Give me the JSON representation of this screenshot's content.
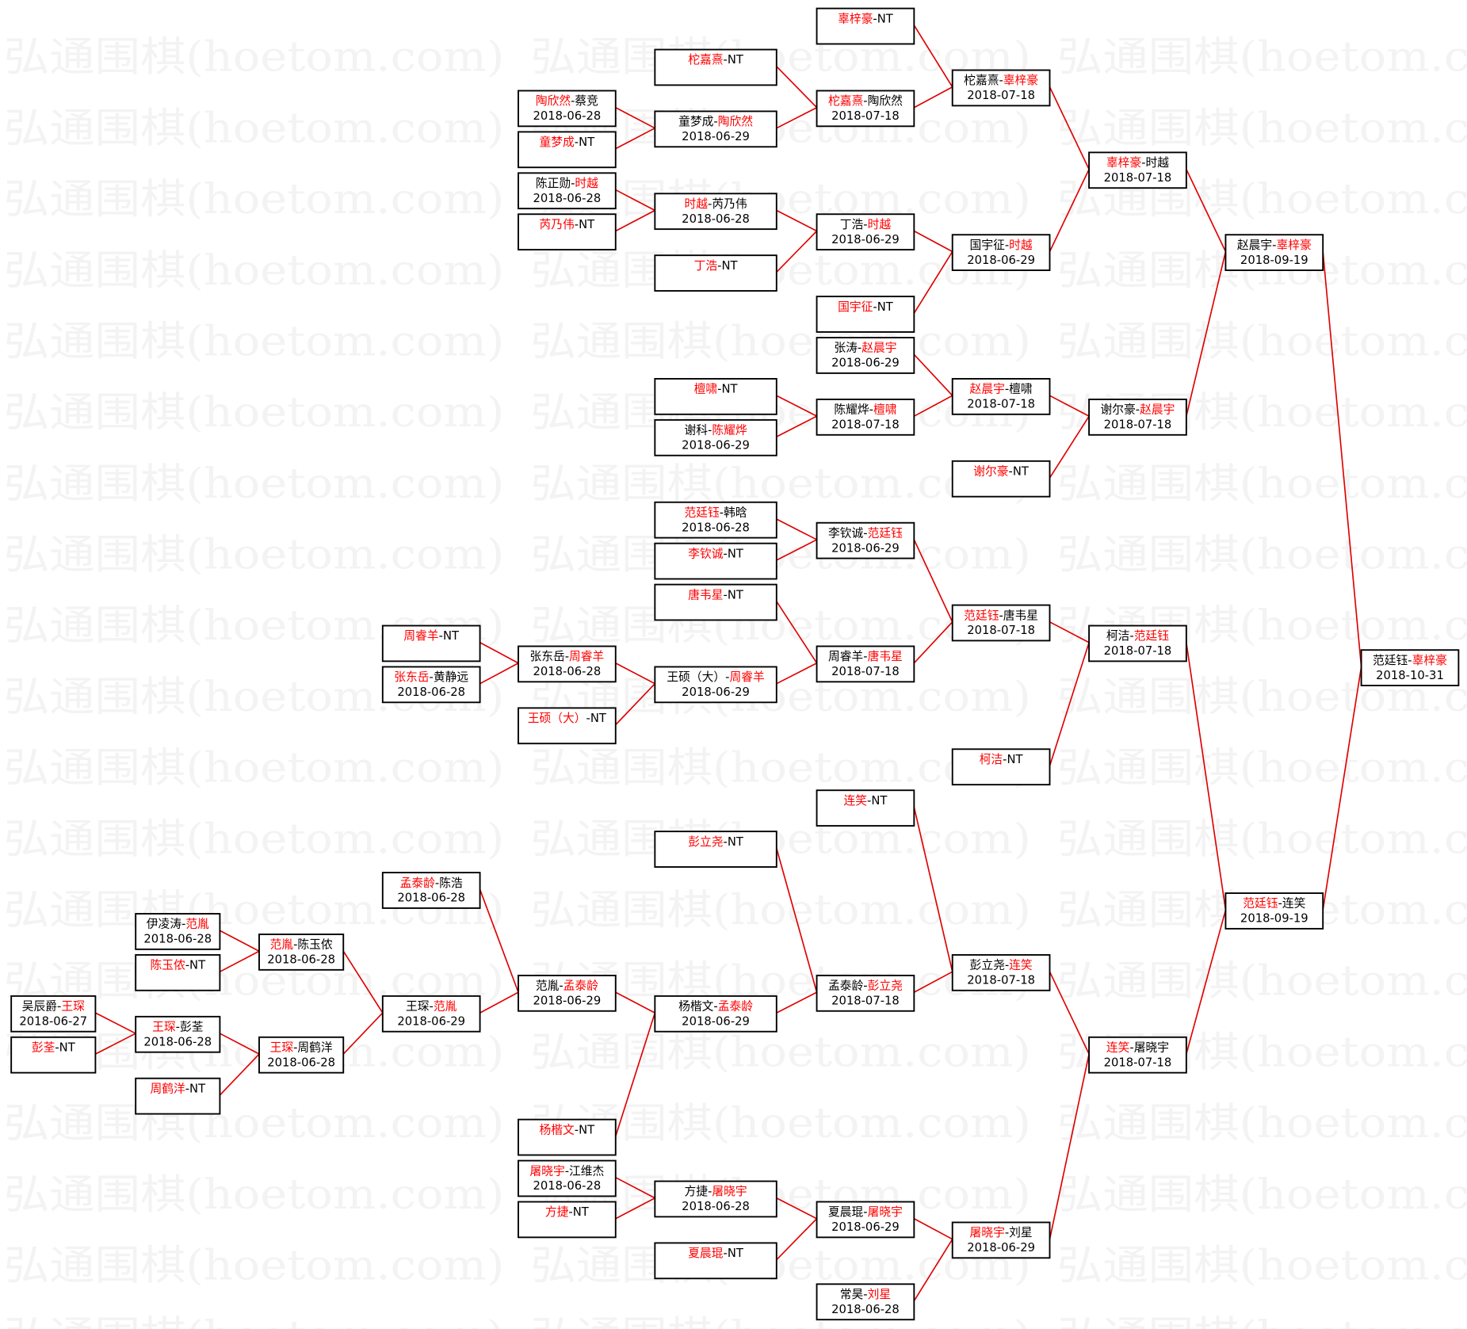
{
  "watermark": "弘通围棋(hoetom.com)",
  "colors": {
    "winner": "#ff0000",
    "line": "#e00000",
    "box_border": "#000000",
    "text": "#000000",
    "watermark": "#f3f3f3"
  },
  "bye_label": "NT",
  "matches": [
    {
      "id": 1,
      "p1": "辜梓豪",
      "p2": "NT",
      "winner": 1,
      "date": ""
    },
    {
      "id": 2,
      "p1": "柁嘉熹",
      "p2": "NT",
      "winner": 1,
      "date": ""
    },
    {
      "id": 3,
      "p1": "陶欣然",
      "p2": "蔡竞",
      "winner": 1,
      "date": "2018-06-28"
    },
    {
      "id": 4,
      "p1": "童梦成",
      "p2": "NT",
      "winner": 1,
      "date": ""
    },
    {
      "id": 5,
      "p1": "童梦成",
      "p2": "陶欣然",
      "winner": 2,
      "date": "2018-06-29",
      "from": [
        3,
        4
      ]
    },
    {
      "id": 6,
      "p1": "柁嘉熹",
      "p2": "陶欣然",
      "winner": 1,
      "date": "2018-07-18",
      "from": [
        2,
        5
      ]
    },
    {
      "id": 7,
      "p1": "柁嘉熹",
      "p2": "辜梓豪",
      "winner": 2,
      "date": "2018-07-18",
      "from": [
        1,
        6
      ]
    },
    {
      "id": 8,
      "p1": "陈正勋",
      "p2": "时越",
      "winner": 2,
      "date": "2018-06-28"
    },
    {
      "id": 9,
      "p1": "芮乃伟",
      "p2": "NT",
      "winner": 1,
      "date": ""
    },
    {
      "id": 10,
      "p1": "时越",
      "p2": "芮乃伟",
      "winner": 1,
      "date": "2018-06-28",
      "from": [
        8,
        9
      ]
    },
    {
      "id": 11,
      "p1": "丁浩",
      "p2": "NT",
      "winner": 1,
      "date": ""
    },
    {
      "id": 12,
      "p1": "丁浩",
      "p2": "时越",
      "winner": 2,
      "date": "2018-06-29",
      "from": [
        10,
        11
      ]
    },
    {
      "id": 13,
      "p1": "国宇征",
      "p2": "NT",
      "winner": 1,
      "date": ""
    },
    {
      "id": 14,
      "p1": "国宇征",
      "p2": "时越",
      "winner": 2,
      "date": "2018-06-29",
      "from": [
        12,
        13
      ]
    },
    {
      "id": 15,
      "p1": "辜梓豪",
      "p2": "时越",
      "winner": 1,
      "date": "2018-07-18",
      "from": [
        7,
        14
      ]
    },
    {
      "id": 16,
      "p1": "张涛",
      "p2": "赵晨宇",
      "winner": 2,
      "date": "2018-06-29"
    },
    {
      "id": 17,
      "p1": "檀啸",
      "p2": "NT",
      "winner": 1,
      "date": ""
    },
    {
      "id": 18,
      "p1": "谢科",
      "p2": "陈耀烨",
      "winner": 2,
      "date": "2018-06-29"
    },
    {
      "id": 19,
      "p1": "陈耀烨",
      "p2": "檀啸",
      "winner": 2,
      "date": "2018-07-18",
      "from": [
        17,
        18
      ]
    },
    {
      "id": 20,
      "p1": "赵晨宇",
      "p2": "檀啸",
      "winner": 1,
      "date": "2018-07-18",
      "from": [
        16,
        19
      ]
    },
    {
      "id": 21,
      "p1": "谢尔豪",
      "p2": "NT",
      "winner": 1,
      "date": ""
    },
    {
      "id": 22,
      "p1": "谢尔豪",
      "p2": "赵晨宇",
      "winner": 2,
      "date": "2018-07-18",
      "from": [
        20,
        21
      ]
    },
    {
      "id": 23,
      "p1": "赵晨宇",
      "p2": "辜梓豪",
      "winner": 2,
      "date": "2018-09-19",
      "from": [
        15,
        22
      ]
    },
    {
      "id": 24,
      "p1": "范廷钰",
      "p2": "韩晗",
      "winner": 1,
      "date": "2018-06-28"
    },
    {
      "id": 25,
      "p1": "李钦诚",
      "p2": "NT",
      "winner": 1,
      "date": ""
    },
    {
      "id": 26,
      "p1": "李钦诚",
      "p2": "范廷钰",
      "winner": 2,
      "date": "2018-06-29",
      "from": [
        24,
        25
      ]
    },
    {
      "id": 27,
      "p1": "唐韦星",
      "p2": "NT",
      "winner": 1,
      "date": ""
    },
    {
      "id": 28,
      "p1": "周睿羊",
      "p2": "NT",
      "winner": 1,
      "date": ""
    },
    {
      "id": 29,
      "p1": "张东岳",
      "p2": "黄静远",
      "winner": 1,
      "date": "2018-06-28"
    },
    {
      "id": 30,
      "p1": "张东岳",
      "p2": "周睿羊",
      "winner": 2,
      "date": "2018-06-28",
      "from": [
        28,
        29
      ]
    },
    {
      "id": 31,
      "p1": "王硕（大）",
      "p2": "NT",
      "winner": 1,
      "date": ""
    },
    {
      "id": 32,
      "p1": "王硕（大）",
      "p2": "周睿羊",
      "winner": 2,
      "date": "2018-06-29",
      "from": [
        30,
        31
      ]
    },
    {
      "id": 33,
      "p1": "周睿羊",
      "p2": "唐韦星",
      "winner": 2,
      "date": "2018-07-18",
      "from": [
        27,
        32
      ]
    },
    {
      "id": 34,
      "p1": "范廷钰",
      "p2": "唐韦星",
      "winner": 1,
      "date": "2018-07-18",
      "from": [
        26,
        33
      ]
    },
    {
      "id": 35,
      "p1": "柯洁",
      "p2": "NT",
      "winner": 1,
      "date": ""
    },
    {
      "id": 36,
      "p1": "柯洁",
      "p2": "范廷钰",
      "winner": 2,
      "date": "2018-07-18",
      "from": [
        34,
        35
      ]
    },
    {
      "id": 37,
      "p1": "连笑",
      "p2": "NT",
      "winner": 1,
      "date": ""
    },
    {
      "id": 38,
      "p1": "彭立尧",
      "p2": "NT",
      "winner": 1,
      "date": ""
    },
    {
      "id": 39,
      "p1": "孟泰龄",
      "p2": "陈浩",
      "winner": 1,
      "date": "2018-06-28"
    },
    {
      "id": 40,
      "p1": "伊凌涛",
      "p2": "范胤",
      "winner": 2,
      "date": "2018-06-28"
    },
    {
      "id": 41,
      "p1": "陈玉侬",
      "p2": "NT",
      "winner": 1,
      "date": ""
    },
    {
      "id": 42,
      "p1": "范胤",
      "p2": "陈玉侬",
      "winner": 1,
      "date": "2018-06-28",
      "from": [
        40,
        41
      ]
    },
    {
      "id": 43,
      "p1": "吴辰爵",
      "p2": "王琛",
      "winner": 2,
      "date": "2018-06-27"
    },
    {
      "id": 44,
      "p1": "彭荃",
      "p2": "NT",
      "winner": 1,
      "date": ""
    },
    {
      "id": 45,
      "p1": "王琛",
      "p2": "彭荃",
      "winner": 1,
      "date": "2018-06-28",
      "from": [
        43,
        44
      ]
    },
    {
      "id": 46,
      "p1": "周鹤洋",
      "p2": "NT",
      "winner": 1,
      "date": ""
    },
    {
      "id": 47,
      "p1": "王琛",
      "p2": "周鹤洋",
      "winner": 1,
      "date": "2018-06-28",
      "from": [
        45,
        46
      ]
    },
    {
      "id": 48,
      "p1": "王琛",
      "p2": "范胤",
      "winner": 2,
      "date": "2018-06-29",
      "from": [
        42,
        47
      ]
    },
    {
      "id": 49,
      "p1": "范胤",
      "p2": "孟泰龄",
      "winner": 2,
      "date": "2018-06-29",
      "from": [
        39,
        48
      ]
    },
    {
      "id": 50,
      "p1": "杨楷文",
      "p2": "NT",
      "winner": 1,
      "date": ""
    },
    {
      "id": 51,
      "p1": "杨楷文",
      "p2": "孟泰龄",
      "winner": 2,
      "date": "2018-06-29",
      "from": [
        49,
        50
      ]
    },
    {
      "id": 52,
      "p1": "孟泰龄",
      "p2": "彭立尧",
      "winner": 2,
      "date": "2018-07-18",
      "from": [
        38,
        51
      ]
    },
    {
      "id": 53,
      "p1": "彭立尧",
      "p2": "连笑",
      "winner": 2,
      "date": "2018-07-18",
      "from": [
        37,
        52
      ]
    },
    {
      "id": 54,
      "p1": "屠晓宇",
      "p2": "江维杰",
      "winner": 1,
      "date": "2018-06-28"
    },
    {
      "id": 55,
      "p1": "方捷",
      "p2": "NT",
      "winner": 1,
      "date": ""
    },
    {
      "id": 56,
      "p1": "方捷",
      "p2": "屠晓宇",
      "winner": 2,
      "date": "2018-06-28",
      "from": [
        54,
        55
      ]
    },
    {
      "id": 57,
      "p1": "夏晨琨",
      "p2": "NT",
      "winner": 1,
      "date": ""
    },
    {
      "id": 58,
      "p1": "夏晨琨",
      "p2": "屠晓宇",
      "winner": 2,
      "date": "2018-06-29",
      "from": [
        56,
        57
      ]
    },
    {
      "id": 59,
      "p1": "常昊",
      "p2": "刘星",
      "winner": 2,
      "date": "2018-06-28"
    },
    {
      "id": 60,
      "p1": "屠晓宇",
      "p2": "刘星",
      "winner": 1,
      "date": "2018-06-29",
      "from": [
        58,
        59
      ]
    },
    {
      "id": 61,
      "p1": "连笑",
      "p2": "屠晓宇",
      "winner": 1,
      "date": "2018-07-18",
      "from": [
        53,
        60
      ]
    },
    {
      "id": 62,
      "p1": "范廷钰",
      "p2": "连笑",
      "winner": 1,
      "date": "2018-09-19",
      "from": [
        36,
        61
      ]
    },
    {
      "id": 63,
      "p1": "范廷钰",
      "p2": "辜梓豪",
      "winner": 2,
      "date": "2018-10-31",
      "from": [
        23,
        62
      ]
    }
  ]
}
